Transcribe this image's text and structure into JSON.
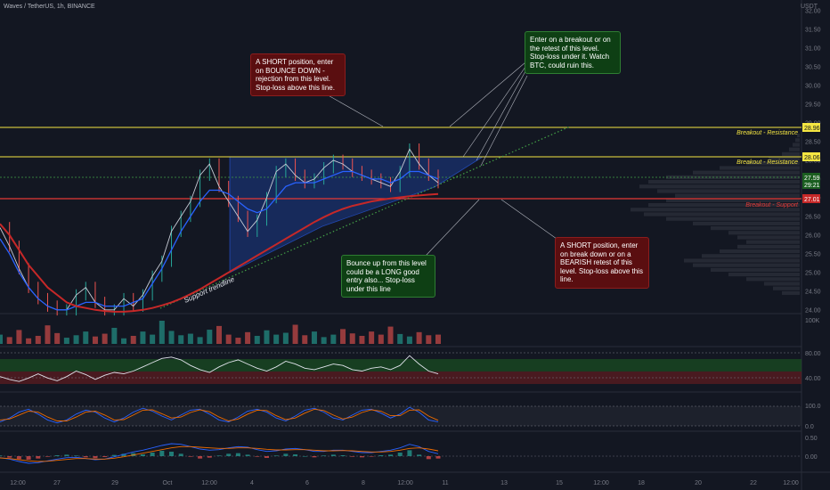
{
  "symbol_title": "Waves / TetherUS, 1h, BINANCE",
  "quote_currency": "USDT",
  "colors": {
    "background": "#131722",
    "resistance": "#f5e642",
    "support": "#e53935",
    "price": "#b2b5be",
    "ma_fast": "#2962ff",
    "ma_slow": "#c62828",
    "trendline": "#43a047",
    "triangle_fill": "#1c3a8a"
  },
  "chart_data": [
    {
      "type": "line",
      "panel": "price",
      "x_ticks": [
        "12:00",
        "27",
        "29",
        "Oct",
        "12:00",
        "4",
        "6",
        "8",
        "12:00",
        "11",
        "13",
        "15",
        "12:00",
        "18",
        "20",
        "22",
        "12:00"
      ],
      "y_ticks": [
        "32.00",
        "31.50",
        "31.00",
        "30.50",
        "30.00",
        "29.50",
        "29.00",
        "28.50",
        "28.00",
        "27.50",
        "27.00",
        "26.50",
        "26.00",
        "25.50",
        "25.00",
        "24.50",
        "24.00"
      ],
      "ylim": [
        23.9,
        32.0
      ],
      "series": [
        {
          "values": [
            26.2,
            25.7,
            25.1,
            24.6,
            24.3,
            24.1,
            24.0,
            24.0,
            24.4,
            24.6,
            24.2,
            24.0,
            24.0,
            24.3,
            24.1,
            24.4,
            24.9,
            25.3,
            26.1,
            26.5,
            26.9,
            27.6,
            27.9,
            27.3,
            26.9,
            26.5,
            26.1,
            26.4,
            27.0,
            27.7,
            27.9,
            27.6,
            27.4,
            27.5,
            27.8,
            28.0,
            27.9,
            27.7,
            27.6,
            27.5,
            27.4,
            27.3,
            27.7,
            28.3,
            27.9,
            27.6,
            27.4
          ]
        },
        {
          "values": [
            25.9,
            25.5,
            25.0,
            24.6,
            24.3,
            24.1,
            24.0,
            24.0,
            24.1,
            24.2,
            24.2,
            24.1,
            24.1,
            24.1,
            24.2,
            24.3,
            24.7,
            25.1,
            25.6,
            26.1,
            26.5,
            26.9,
            27.2,
            27.2,
            27.1,
            26.9,
            26.7,
            26.6,
            26.7,
            27.0,
            27.3,
            27.4,
            27.4,
            27.4,
            27.5,
            27.6,
            27.7,
            27.7,
            27.6,
            27.5,
            27.5,
            27.4,
            27.5,
            27.7,
            27.7,
            27.6,
            27.5
          ]
        },
        {
          "values": [
            26.3,
            26.0,
            25.6,
            25.2,
            24.9,
            24.6,
            24.4,
            24.2,
            24.1,
            24.05,
            24.0,
            23.97,
            23.95,
            23.95,
            23.97,
            24.0,
            24.05,
            24.12,
            24.2,
            24.3,
            24.42,
            24.55,
            24.7,
            24.85,
            25.0,
            25.15,
            25.3,
            25.45,
            25.6,
            25.75,
            25.9,
            26.05,
            26.2,
            26.35,
            26.48,
            26.6,
            26.7,
            26.78,
            26.84,
            26.9,
            26.94,
            26.98,
            27.01,
            27.04,
            27.06,
            27.08,
            27.1
          ]
        }
      ],
      "levels": [
        {
          "label": "Breakout - Resistance",
          "value": 28.96
        },
        {
          "label": "Breakout - Resistance",
          "value": 28.06
        },
        {
          "label": "Breakout - Support",
          "value": 27.01
        }
      ],
      "price_labels": [
        "28.96",
        "28.06",
        "27.59",
        "29:21",
        "27.01"
      ],
      "trendline_label": "Support trendline",
      "annotations": [
        "A SHORT position, enter on BOUNCE DOWN - rejection from this level. Stop-loss above this line.",
        "Enter on a breakout or on the retest of this level. Stop-loss under it. Watch BTC, could ruin this.",
        "A SHORT position, enter on break down or on a BEARISH retest of this level. Stop-loss above this line.",
        "Bounce up from this level could be a LONG good entry also... Stop-loss under this line"
      ]
    },
    {
      "type": "bar",
      "panel": "volume",
      "y_ticks": [
        "100K"
      ],
      "values": [
        30,
        22,
        45,
        18,
        26,
        60,
        35,
        20,
        28,
        40,
        24,
        33,
        52,
        18,
        26,
        40,
        30,
        75,
        42,
        28,
        33,
        22,
        46,
        58,
        30,
        20,
        38,
        26,
        44,
        30,
        36,
        62,
        28,
        40,
        22,
        30,
        48,
        34,
        26,
        40,
        30,
        56,
        32,
        24,
        38,
        28,
        30
      ]
    },
    {
      "type": "line",
      "panel": "rsi",
      "y_ticks": [
        "80.00",
        "40.00"
      ],
      "ylim": [
        20,
        85
      ],
      "values": [
        42,
        38,
        35,
        40,
        46,
        40,
        36,
        42,
        50,
        45,
        38,
        44,
        48,
        46,
        50,
        56,
        62,
        68,
        70,
        66,
        58,
        52,
        48,
        56,
        62,
        66,
        60,
        54,
        50,
        56,
        64,
        60,
        54,
        52,
        56,
        60,
        58,
        52,
        50,
        54,
        56,
        52,
        58,
        72,
        60,
        50,
        46
      ]
    },
    {
      "type": "line",
      "panel": "stochastic",
      "y_ticks": [
        "100.0",
        "0.0"
      ],
      "ylim": [
        0,
        100
      ],
      "series": [
        {
          "values": [
            20,
            40,
            70,
            85,
            60,
            30,
            15,
            30,
            60,
            80,
            70,
            40,
            20,
            40,
            70,
            90,
            75,
            50,
            30,
            55,
            80,
            85,
            60,
            30,
            20,
            45,
            75,
            85,
            70,
            40,
            25,
            50,
            80,
            90,
            70,
            40,
            30,
            55,
            80,
            85,
            65,
            40,
            60,
            95,
            70,
            30,
            20
          ]
        },
        {
          "values": [
            30,
            35,
            55,
            75,
            70,
            45,
            25,
            25,
            45,
            70,
            75,
            55,
            30,
            32,
            55,
            80,
            82,
            62,
            40,
            45,
            68,
            82,
            72,
            45,
            25,
            35,
            60,
            80,
            78,
            52,
            32,
            40,
            65,
            85,
            78,
            55,
            35,
            45,
            68,
            82,
            75,
            52,
            52,
            80,
            82,
            50,
            28
          ]
        }
      ]
    },
    {
      "type": "bar",
      "panel": "macd",
      "y_ticks": [
        "0.50",
        "0.00"
      ],
      "ylim": [
        -0.35,
        0.6
      ],
      "values": [
        0.02,
        -0.05,
        -0.1,
        -0.12,
        -0.08,
        -0.02,
        0.03,
        0.05,
        0.02,
        -0.04,
        -0.07,
        -0.03,
        0.04,
        0.08,
        0.1,
        0.06,
        0.12,
        0.18,
        0.15,
        0.08,
        -0.02,
        -0.08,
        -0.05,
        0.02,
        0.08,
        0.1,
        0.05,
        -0.02,
        -0.06,
        0.02,
        0.08,
        0.06,
        0.0,
        -0.04,
        0.02,
        0.05,
        0.03,
        -0.02,
        -0.04,
        -0.01,
        0.03,
        0.05,
        0.12,
        0.2,
        0.05,
        -0.1,
        -0.08
      ],
      "series": [
        {
          "values": [
            -0.05,
            -0.1,
            -0.18,
            -0.24,
            -0.22,
            -0.16,
            -0.1,
            -0.05,
            -0.04,
            -0.08,
            -0.12,
            -0.1,
            -0.02,
            0.06,
            0.14,
            0.2,
            0.28,
            0.36,
            0.42,
            0.4,
            0.32,
            0.24,
            0.2,
            0.22,
            0.28,
            0.32,
            0.3,
            0.22,
            0.16,
            0.18,
            0.24,
            0.26,
            0.22,
            0.16,
            0.16,
            0.2,
            0.2,
            0.16,
            0.12,
            0.12,
            0.16,
            0.2,
            0.28,
            0.4,
            0.32,
            0.16,
            0.08
          ]
        },
        {
          "values": [
            -0.06,
            -0.08,
            -0.12,
            -0.16,
            -0.18,
            -0.17,
            -0.14,
            -0.11,
            -0.08,
            -0.08,
            -0.1,
            -0.1,
            -0.07,
            -0.02,
            0.04,
            0.1,
            0.16,
            0.22,
            0.28,
            0.32,
            0.32,
            0.3,
            0.28,
            0.26,
            0.26,
            0.28,
            0.28,
            0.26,
            0.23,
            0.21,
            0.21,
            0.22,
            0.22,
            0.2,
            0.18,
            0.18,
            0.19,
            0.18,
            0.16,
            0.14,
            0.14,
            0.16,
            0.2,
            0.26,
            0.28,
            0.24,
            0.18
          ]
        }
      ]
    }
  ]
}
